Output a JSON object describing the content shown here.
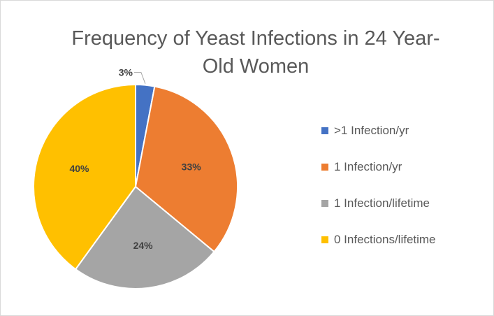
{
  "chart_data": {
    "type": "pie",
    "title": "Frequency of Yeast Infections in 24 Year-Old Women",
    "title_lines": [
      "Frequency of Yeast Infections in 24 Year-",
      "Old Women"
    ],
    "categories": [
      ">1 Infection/yr",
      "1 Infection/yr",
      "1 Infection/lifetime",
      "0 Infections/lifetime"
    ],
    "values": [
      3,
      33,
      24,
      40
    ],
    "value_labels": [
      "3%",
      "33%",
      "24%",
      "40%"
    ],
    "colors": [
      "#4472C4",
      "#ED7D31",
      "#A5A5A5",
      "#FFC000"
    ],
    "legend_position": "right",
    "start_angle_deg": 0,
    "direction": "clockwise"
  }
}
